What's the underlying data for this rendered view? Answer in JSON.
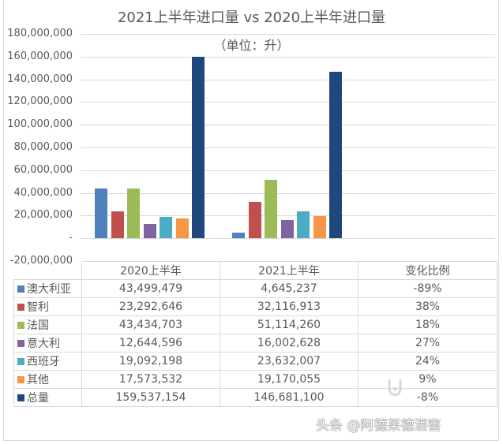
{
  "chart": {
    "title": "2021上半年进口量 vs 2020上半年进口量",
    "subtitle": "（单位：升）",
    "y_ticks": [
      "180,000,000",
      "160,000,000",
      "140,000,000",
      "120,000,000",
      "100,000,000",
      "80,000,000",
      "60,000,000",
      "40,000,000",
      "20,000,000",
      "-",
      "-20,000,000"
    ]
  },
  "table": {
    "headers": [
      "2020上半年",
      "2021上半年",
      "变化比例"
    ],
    "rows": [
      {
        "label": "澳大利亚",
        "color": "#4f81bd",
        "v2020": "43,499,479",
        "v2021": "4,645,237",
        "change": "-89%"
      },
      {
        "label": "智利",
        "color": "#c0504d",
        "v2020": "23,292,646",
        "v2021": "32,116,913",
        "change": "38%"
      },
      {
        "label": "法国",
        "color": "#9bbb59",
        "v2020": "43,434,703",
        "v2021": "51,114,260",
        "change": "18%"
      },
      {
        "label": "意大利",
        "color": "#8064a2",
        "v2020": "12,644,596",
        "v2021": "16,002,628",
        "change": "27%"
      },
      {
        "label": "西班牙",
        "color": "#4bacc6",
        "v2020": "19,092,198",
        "v2021": "23,632,007",
        "change": "24%"
      },
      {
        "label": "其他",
        "color": "#f79646",
        "v2020": "17,573,532",
        "v2021": "19,170,055",
        "change": "9%"
      },
      {
        "label": "总量",
        "color": "#1f497d",
        "v2020": "159,537,154",
        "v2021": "146,681,100",
        "change": "-8%"
      }
    ]
  },
  "watermark": "头条 @阿德莱德酒窖",
  "chart_data": {
    "type": "bar",
    "title": "2021上半年进口量 vs 2020上半年进口量",
    "subtitle": "（单位：升）",
    "xlabel": "",
    "ylabel": "",
    "ylim": [
      -20000000,
      180000000
    ],
    "y_tick_step": 20000000,
    "grid": true,
    "legend_position": "data table below chart",
    "categories": [
      "2020上半年",
      "2021上半年"
    ],
    "series": [
      {
        "name": "澳大利亚",
        "color": "#4f81bd",
        "values": [
          43499479,
          4645237
        ]
      },
      {
        "name": "智利",
        "color": "#c0504d",
        "values": [
          23292646,
          32116913
        ]
      },
      {
        "name": "法国",
        "color": "#9bbb59",
        "values": [
          43434703,
          51114260
        ]
      },
      {
        "name": "意大利",
        "color": "#8064a2",
        "values": [
          12644596,
          16002628
        ]
      },
      {
        "name": "西班牙",
        "color": "#4bacc6",
        "values": [
          19092198,
          23632007
        ]
      },
      {
        "name": "其他",
        "color": "#f79646",
        "values": [
          17573532,
          19170055
        ]
      },
      {
        "name": "总量",
        "color": "#1f497d",
        "values": [
          159537154,
          146681100
        ]
      }
    ],
    "change_ratio": {
      "澳大利亚": "-89%",
      "智利": "38%",
      "法国": "18%",
      "意大利": "27%",
      "西班牙": "24%",
      "其他": "9%",
      "总量": "-8%"
    }
  }
}
